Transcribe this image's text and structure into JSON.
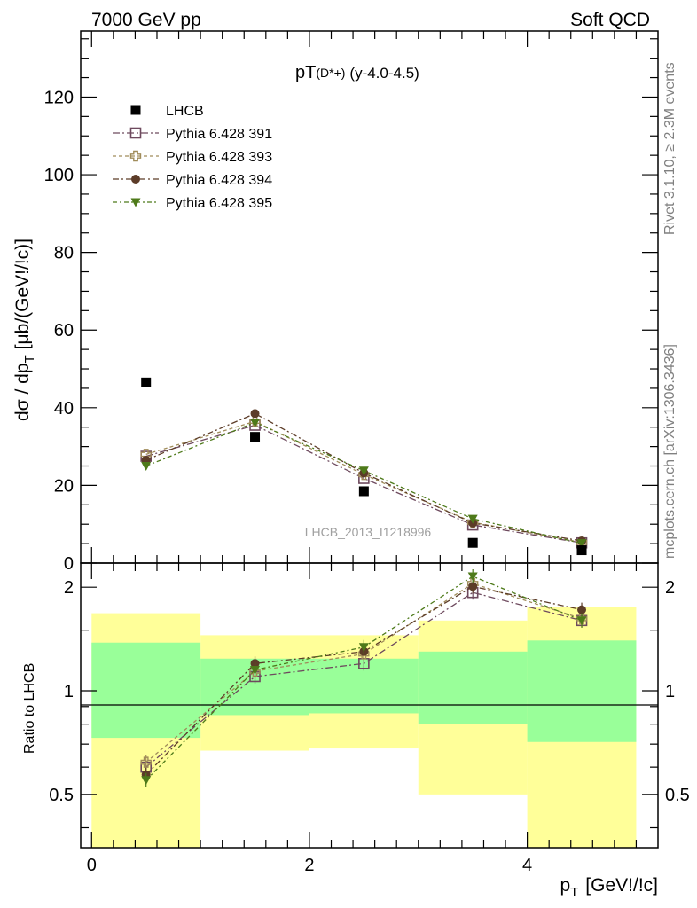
{
  "header": {
    "left_label": "7000 GeV pp",
    "right_label": "Soft QCD"
  },
  "side_labels": {
    "rivet": "Rivet 3.1.10, ≥ 2.3M events",
    "mcplots": "mcplots.cern.ch [arXiv:1306.3436]"
  },
  "chart_data": {
    "type": "scatter",
    "title_main": "pT",
    "title_sub": "(D*+)",
    "title_range": "(y-4.0-4.5)",
    "analysis_id": "LHCB_2013_I1218996",
    "xlabel": "p_T [GeV!/!c]",
    "xlabel_base": "p",
    "xlabel_sub": "T",
    "xlabel_rest": "[GeV!/!c]",
    "ylabel": "dσ / dp_T [μb/(GeV!/!c)]",
    "ylabel_pre": "dσ / dp",
    "ylabel_sub": "T",
    "ylabel_post": "[μb/(GeV!/!c)]",
    "ratio_ylabel": "Ratio to LHCB",
    "xlim": [
      -0.1,
      5.2
    ],
    "ylim": [
      0,
      137
    ],
    "ratio_ylim": [
      0.35,
      2.35
    ],
    "x_ticks": [
      0,
      2,
      4
    ],
    "y_ticks": [
      0,
      20,
      40,
      60,
      80,
      100,
      120
    ],
    "ratio_ticks": [
      0.5,
      1,
      2
    ],
    "x": [
      0.5,
      1.5,
      2.5,
      3.5,
      4.5
    ],
    "bin_edges": [
      0,
      1,
      2,
      3,
      4,
      5
    ],
    "data": {
      "name": "LHCB",
      "color": "#000000",
      "values": [
        46.5,
        32.5,
        18.5,
        5.2,
        3.3
      ]
    },
    "series": [
      {
        "name": "Pythia 6.428 391",
        "color": "#6e4a5e",
        "marker": "square-open",
        "values": [
          27.5,
          35.5,
          21.8,
          9.8,
          5.2
        ],
        "ratio": [
          0.6,
          1.1,
          1.2,
          1.93,
          1.6
        ]
      },
      {
        "name": "Pythia 6.428 393",
        "color": "#a08c5a",
        "marker": "cross-open",
        "values": [
          28.0,
          36.5,
          22.8,
          10.5,
          5.3
        ],
        "ratio": [
          0.62,
          1.14,
          1.28,
          2.05,
          1.62
        ]
      },
      {
        "name": "Pythia 6.428 394",
        "color": "#5c3c28",
        "marker": "circle",
        "values": [
          26.5,
          38.5,
          23.2,
          10.3,
          5.7
        ],
        "ratio": [
          0.57,
          1.2,
          1.3,
          2.01,
          1.72
        ]
      },
      {
        "name": "Pythia 6.428 395",
        "color": "#4e7a1a",
        "marker": "triangle-down",
        "values": [
          25.0,
          36.2,
          23.8,
          11.4,
          5.1
        ],
        "ratio": [
          0.55,
          1.15,
          1.34,
          2.15,
          1.6
        ]
      }
    ],
    "bands": {
      "green_color": "#99ff99",
      "yellow_color": "#ffff99",
      "green": [
        [
          0.73,
          1.38
        ],
        [
          0.85,
          1.24
        ],
        [
          0.86,
          1.24
        ],
        [
          0.8,
          1.3
        ],
        [
          0.71,
          1.4
        ]
      ],
      "yellow": [
        [
          0.35,
          1.68
        ],
        [
          0.67,
          1.45
        ],
        [
          0.68,
          1.45
        ],
        [
          0.5,
          1.6
        ],
        [
          0.35,
          1.75
        ]
      ]
    }
  }
}
